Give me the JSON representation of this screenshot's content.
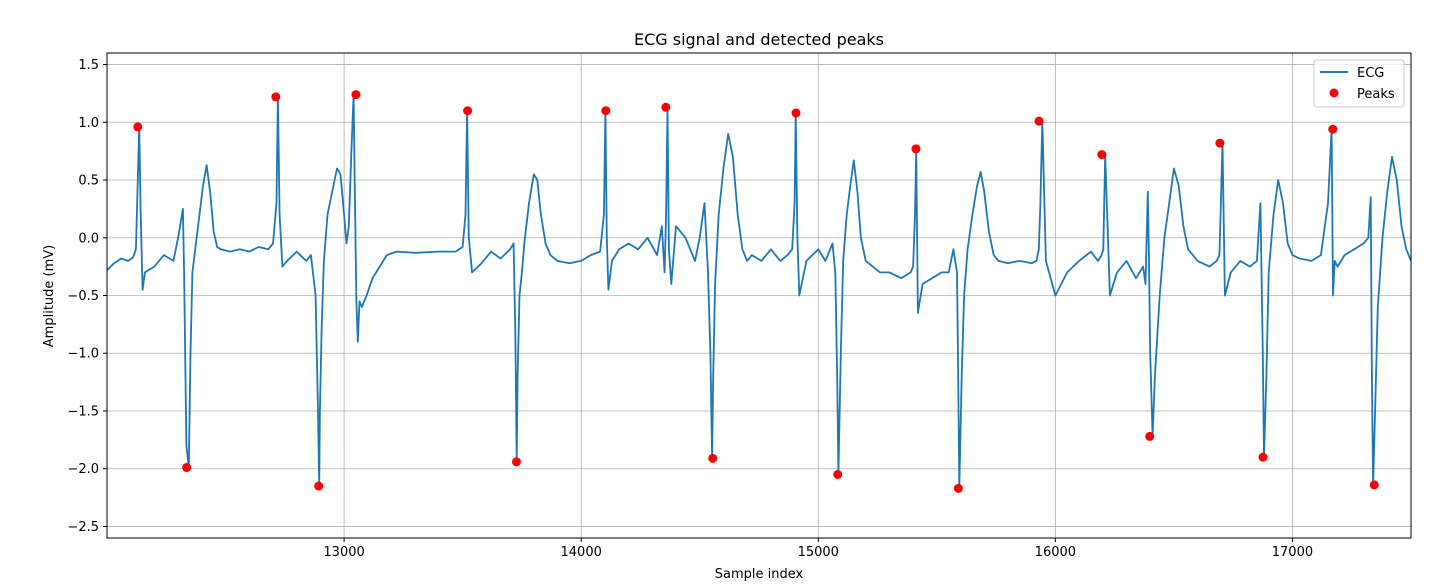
{
  "chart_data": {
    "type": "line",
    "title": "ECG signal and detected peaks",
    "xlabel": "Sample index",
    "ylabel": "Amplitude (mV)",
    "xlim": [
      12000,
      17500
    ],
    "ylim": [
      -2.6,
      1.6
    ],
    "xticks": [
      13000,
      14000,
      15000,
      16000,
      17000
    ],
    "yticks": [
      -2.5,
      -2.0,
      -1.5,
      -1.0,
      -0.5,
      0.0,
      0.5,
      1.0,
      1.5
    ],
    "xtick_labels": [
      "13000",
      "14000",
      "15000",
      "16000",
      "17000"
    ],
    "ytick_labels": [
      "−2.5",
      "−2.0",
      "−1.5",
      "−1.0",
      "−0.5",
      "0.0",
      "0.5",
      "1.0",
      "1.5"
    ],
    "grid": true,
    "legend_position": "top-right",
    "series": [
      {
        "name": "ECG",
        "style": "line",
        "color": "#1f77b4",
        "x": [
          12000,
          12030,
          12060,
          12090,
          12110,
          12122,
          12130,
          12136,
          12142,
          12150,
          12160,
          12200,
          12240,
          12280,
          12300,
          12320,
          12325,
          12335,
          12345,
          12352,
          12360,
          12375,
          12390,
          12405,
          12420,
          12435,
          12450,
          12465,
          12480,
          12520,
          12560,
          12600,
          12640,
          12680,
          12700,
          12715,
          12721,
          12728,
          12740,
          12760,
          12800,
          12840,
          12860,
          12880,
          12890,
          12895,
          12898,
          12905,
          12915,
          12930,
          12950,
          12970,
          12985,
          13000,
          13010,
          13020,
          13030,
          13040,
          13046,
          13052,
          13058,
          13065,
          13075,
          13085,
          13095,
          13120,
          13150,
          13180,
          13220,
          13300,
          13400,
          13470,
          13500,
          13512,
          13519,
          13526,
          13540,
          13580,
          13620,
          13660,
          13700,
          13715,
          13722,
          13728,
          13732,
          13740,
          13750,
          13760,
          13780,
          13800,
          13815,
          13830,
          13850,
          13870,
          13900,
          13950,
          14000,
          14040,
          14080,
          14096,
          14102,
          14108,
          14115,
          14130,
          14160,
          14200,
          14240,
          14280,
          14320,
          14340,
          14352,
          14358,
          14364,
          14370,
          14380,
          14400,
          14440,
          14480,
          14500,
          14520,
          14535,
          14545,
          14552,
          14557,
          14565,
          14580,
          14600,
          14620,
          14640,
          14660,
          14680,
          14700,
          14720,
          14760,
          14800,
          14840,
          14870,
          14890,
          14900,
          14905,
          14912,
          14920,
          14950,
          15000,
          15030,
          15060,
          15072,
          15080,
          15085,
          15095,
          15105,
          15120,
          15135,
          15150,
          15165,
          15180,
          15200,
          15230,
          15260,
          15300,
          15350,
          15390,
          15400,
          15408,
          15413,
          15420,
          15440,
          15480,
          15520,
          15550,
          15570,
          15585,
          15590,
          15595,
          15605,
          15615,
          15630,
          15650,
          15670,
          15685,
          15700,
          15720,
          15740,
          15760,
          15800,
          15850,
          15900,
          15920,
          15930,
          15937,
          15945,
          15960,
          16000,
          16050,
          16100,
          16150,
          16180,
          16195,
          16202,
          16210,
          16230,
          16260,
          16300,
          16340,
          16370,
          16380,
          16390,
          16395,
          16400,
          16410,
          16420,
          16440,
          16460,
          16480,
          16500,
          16520,
          16540,
          16560,
          16600,
          16650,
          16680,
          16692,
          16698,
          16705,
          16715,
          16740,
          16780,
          16820,
          16850,
          16865,
          16875,
          16880,
          16890,
          16900,
          16920,
          16940,
          16960,
          16980,
          17000,
          17030,
          17080,
          17120,
          17150,
          17165,
          17171,
          17178,
          17190,
          17220,
          17260,
          17300,
          17320,
          17330,
          17335,
          17340,
          17350,
          17360,
          17380,
          17400,
          17420,
          17440,
          17460,
          17480,
          17500
        ],
        "y": [
          -0.28,
          -0.22,
          -0.18,
          -0.2,
          -0.17,
          -0.1,
          0.5,
          0.96,
          0.2,
          -0.45,
          -0.3,
          -0.25,
          -0.15,
          -0.2,
          0.0,
          0.25,
          -0.3,
          -1.8,
          -1.99,
          -1.0,
          -0.3,
          -0.05,
          0.2,
          0.45,
          0.63,
          0.4,
          0.05,
          -0.08,
          -0.1,
          -0.12,
          -0.1,
          -0.12,
          -0.08,
          -0.1,
          -0.05,
          0.3,
          1.22,
          0.2,
          -0.25,
          -0.2,
          -0.12,
          -0.2,
          -0.15,
          -0.5,
          -1.5,
          -2.15,
          -1.5,
          -0.8,
          -0.2,
          0.2,
          0.4,
          0.6,
          0.55,
          0.2,
          -0.05,
          0.1,
          0.7,
          1.24,
          0.3,
          -0.55,
          -0.9,
          -0.55,
          -0.6,
          -0.55,
          -0.5,
          -0.35,
          -0.25,
          -0.15,
          -0.12,
          -0.13,
          -0.12,
          -0.12,
          -0.08,
          0.2,
          1.1,
          0.0,
          -0.3,
          -0.22,
          -0.12,
          -0.18,
          -0.1,
          -0.05,
          -0.8,
          -1.94,
          -1.2,
          -0.5,
          -0.3,
          -0.05,
          0.3,
          0.55,
          0.5,
          0.2,
          -0.05,
          -0.15,
          -0.2,
          -0.22,
          -0.2,
          -0.15,
          -0.12,
          0.2,
          1.1,
          0.0,
          -0.45,
          -0.2,
          -0.1,
          -0.05,
          -0.1,
          0.0,
          -0.15,
          0.1,
          -0.3,
          0.2,
          1.13,
          -0.1,
          -0.4,
          0.1,
          0.0,
          -0.2,
          0.0,
          0.3,
          -0.3,
          -1.0,
          -1.91,
          -1.2,
          -0.4,
          0.2,
          0.6,
          0.9,
          0.7,
          0.2,
          -0.1,
          -0.2,
          -0.15,
          -0.2,
          -0.1,
          -0.2,
          -0.15,
          -0.1,
          0.3,
          1.08,
          0.0,
          -0.5,
          -0.2,
          -0.1,
          -0.2,
          -0.05,
          -0.3,
          -1.2,
          -2.05,
          -1.0,
          -0.2,
          0.2,
          0.45,
          0.67,
          0.4,
          0.0,
          -0.2,
          -0.25,
          -0.3,
          -0.3,
          -0.35,
          -0.3,
          -0.25,
          0.2,
          0.77,
          -0.65,
          -0.4,
          -0.35,
          -0.3,
          -0.3,
          -0.1,
          -0.3,
          -1.2,
          -2.17,
          -1.2,
          -0.5,
          -0.1,
          0.2,
          0.45,
          0.57,
          0.4,
          0.05,
          -0.15,
          -0.2,
          -0.22,
          -0.2,
          -0.22,
          -0.2,
          -0.1,
          0.3,
          1.01,
          -0.2,
          -0.5,
          -0.3,
          -0.2,
          -0.12,
          -0.2,
          -0.15,
          -0.1,
          0.72,
          -0.5,
          -0.3,
          -0.2,
          -0.35,
          -0.25,
          -0.4,
          0.4,
          -0.2,
          -1.0,
          -1.72,
          -1.2,
          -0.5,
          0.0,
          0.3,
          0.6,
          0.45,
          0.1,
          -0.1,
          -0.2,
          -0.25,
          -0.2,
          -0.15,
          0.3,
          0.82,
          -0.5,
          -0.3,
          -0.2,
          -0.25,
          -0.2,
          0.3,
          -1.0,
          -1.9,
          -1.2,
          -0.3,
          0.2,
          0.5,
          0.3,
          -0.05,
          -0.15,
          -0.18,
          -0.2,
          -0.15,
          0.3,
          0.94,
          -0.5,
          -0.2,
          -0.25,
          -0.15,
          -0.1,
          -0.05,
          0.0,
          0.35,
          -1.2,
          -2.14,
          -1.4,
          -0.6,
          0.0,
          0.4,
          0.7,
          0.5,
          0.1,
          -0.1,
          -0.2
        ]
      },
      {
        "name": "Peaks",
        "style": "markers",
        "color": "#ff0000",
        "x": [
          12130,
          12336,
          12712,
          12893,
          13050,
          13521,
          13727,
          14104,
          14357,
          14555,
          14906,
          15082,
          15412,
          15591,
          15931,
          16196,
          16398,
          16694,
          16876,
          17170,
          17345
        ],
        "y": [
          0.96,
          -1.99,
          1.22,
          -2.15,
          1.24,
          1.1,
          -1.94,
          1.1,
          1.13,
          -1.91,
          1.08,
          -2.05,
          0.77,
          -2.17,
          1.01,
          0.72,
          -1.72,
          0.82,
          -1.9,
          0.94,
          -2.14
        ]
      }
    ]
  }
}
